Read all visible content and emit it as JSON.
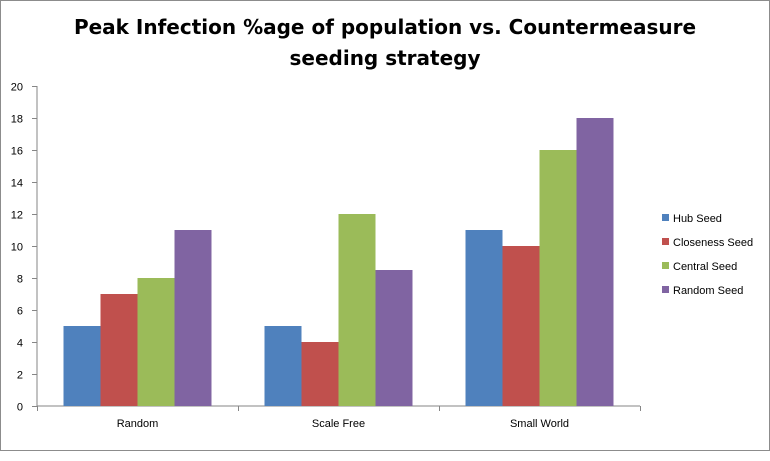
{
  "chart_data": {
    "type": "bar",
    "title": "Peak Infection %age of population vs. Countermeasure seeding strategy",
    "title_lines": [
      "Peak Infection %age of population vs. Countermeasure",
      "seeding strategy"
    ],
    "categories": [
      "Random",
      "Scale Free",
      "Small World"
    ],
    "series": [
      {
        "name": "Hub Seed",
        "color": "#4f81bd",
        "values": [
          5,
          5,
          11
        ]
      },
      {
        "name": "Closeness Seed",
        "color": "#c0504d",
        "values": [
          7,
          4,
          10
        ]
      },
      {
        "name": "Central Seed",
        "color": "#9bbb59",
        "values": [
          8,
          12,
          16
        ]
      },
      {
        "name": "Random Seed",
        "color": "#8064a2",
        "values": [
          11,
          8.5,
          18
        ]
      }
    ],
    "ylim": [
      0,
      20
    ],
    "yticks": [
      0,
      2,
      4,
      6,
      8,
      10,
      12,
      14,
      16,
      18,
      20
    ],
    "grid": false,
    "legend": "right",
    "xlabel": "",
    "ylabel": ""
  }
}
